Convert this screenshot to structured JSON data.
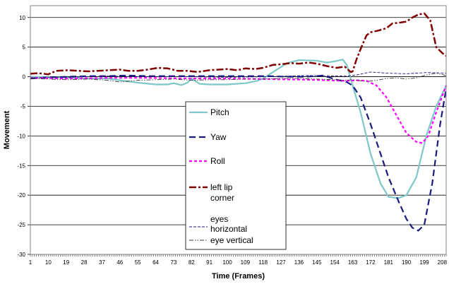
{
  "chart_data": {
    "type": "line",
    "xlabel": "Time (Frames)",
    "ylabel": "Movement",
    "xlim": [
      1,
      210
    ],
    "ylim": [
      -30,
      12
    ],
    "y_ticks": [
      -30,
      -25,
      -20,
      -15,
      -10,
      -5,
      0,
      5,
      10
    ],
    "x_ticks": [
      1,
      10,
      19,
      28,
      37,
      46,
      55,
      64,
      73,
      82,
      91,
      100,
      109,
      118,
      127,
      136,
      145,
      154,
      163,
      172,
      181,
      190,
      199,
      208
    ],
    "grid": "horizontal",
    "legend_position": "center",
    "series": [
      {
        "name": "Pitch",
        "color": "#7ec8c8",
        "style": "solid",
        "x": [
          1,
          10,
          20,
          30,
          40,
          46,
          55,
          64,
          70,
          73,
          77,
          80,
          82,
          86,
          91,
          100,
          109,
          115,
          118,
          124,
          130,
          136,
          145,
          150,
          154,
          158,
          160,
          163,
          167,
          172,
          177,
          181,
          186,
          190,
          195,
          200,
          205,
          210
        ],
        "y": [
          0.0,
          -0.1,
          -0.2,
          -0.3,
          -0.3,
          -0.6,
          -1.0,
          -1.3,
          -1.3,
          -1.1,
          -1.4,
          -1.0,
          -0.3,
          -1.2,
          -1.3,
          -1.3,
          -1.1,
          -0.7,
          -0.3,
          1.0,
          2.3,
          2.8,
          2.7,
          2.4,
          2.6,
          2.9,
          2.0,
          -1.5,
          -6.0,
          -13.0,
          -18.0,
          -20.3,
          -20.5,
          -20.0,
          -17.0,
          -10.0,
          -5.0,
          -1.5
        ]
      },
      {
        "name": "Yaw",
        "color": "#1a1a80",
        "style": "dash",
        "x": [
          1,
          10,
          20,
          30,
          40,
          50,
          60,
          70,
          80,
          90,
          100,
          110,
          120,
          130,
          140,
          148,
          155,
          160,
          163,
          167,
          172,
          177,
          181,
          186,
          190,
          193,
          196,
          199,
          203,
          207,
          210
        ],
        "y": [
          -0.3,
          -0.1,
          0.0,
          0.1,
          0.1,
          0.2,
          0.1,
          0.1,
          0.1,
          0.1,
          0.1,
          0.1,
          0.1,
          0.0,
          0.0,
          0.2,
          -0.5,
          -0.9,
          -1.5,
          -3.5,
          -8.0,
          -13.0,
          -17.0,
          -21.0,
          -24.0,
          -25.5,
          -26.0,
          -25.0,
          -18.0,
          -8.0,
          -2.0
        ]
      },
      {
        "name": "Roll",
        "color": "#ff00ff",
        "style": "dash-short",
        "x": [
          1,
          20,
          40,
          60,
          80,
          100,
          120,
          140,
          160,
          165,
          170,
          175,
          180,
          185,
          190,
          195,
          198,
          201,
          205,
          210
        ],
        "y": [
          -0.2,
          -0.3,
          -0.2,
          -0.2,
          -0.3,
          -0.3,
          -0.4,
          -0.5,
          -0.7,
          -0.6,
          -0.7,
          -1.5,
          -3.5,
          -6.5,
          -9.5,
          -11.0,
          -11.2,
          -10.0,
          -6.0,
          -1.5
        ]
      },
      {
        "name": "left lip corner",
        "color": "#800000",
        "style": "dashdot",
        "x": [
          1,
          5,
          10,
          14,
          20,
          30,
          40,
          46,
          50,
          55,
          60,
          65,
          70,
          75,
          80,
          85,
          91,
          100,
          105,
          109,
          114,
          118,
          123,
          127,
          132,
          136,
          141,
          145,
          150,
          155,
          159,
          162,
          163,
          165,
          168,
          170,
          172,
          176,
          180,
          183,
          186,
          190,
          193,
          196,
          199,
          202,
          205,
          208,
          210
        ],
        "y": [
          0.5,
          0.6,
          0.4,
          1.0,
          1.1,
          0.9,
          1.1,
          1.2,
          1.0,
          1.0,
          1.2,
          1.5,
          1.4,
          1.0,
          1.0,
          0.8,
          1.1,
          1.3,
          1.1,
          1.4,
          1.3,
          1.5,
          2.0,
          2.1,
          2.3,
          2.2,
          2.4,
          2.2,
          1.8,
          1.5,
          1.7,
          0.8,
          0.9,
          3.0,
          5.5,
          7.0,
          7.5,
          7.8,
          8.2,
          9.0,
          9.1,
          9.3,
          10.0,
          10.5,
          10.7,
          9.5,
          5.0,
          4.0,
          3.5
        ]
      },
      {
        "name": "eyes horizontal",
        "color": "#1a1a80",
        "style": "dash-fine",
        "x": [
          1,
          20,
          40,
          60,
          80,
          100,
          120,
          140,
          160,
          165,
          172,
          180,
          190,
          200,
          210
        ],
        "y": [
          -0.2,
          -0.1,
          0.1,
          0.0,
          0.0,
          -0.1,
          0.0,
          0.2,
          0.1,
          0.3,
          0.8,
          0.6,
          0.5,
          0.7,
          0.6
        ]
      },
      {
        "name": "eye vertical",
        "color": "#333333",
        "style": "dashdotdot",
        "x": [
          1,
          10,
          20,
          30,
          40,
          46,
          55,
          64,
          73,
          82,
          91,
          100,
          109,
          118,
          127,
          136,
          145,
          154,
          160,
          163,
          170,
          175,
          180,
          185,
          190,
          195,
          200,
          205,
          210
        ],
        "y": [
          -0.3,
          -0.4,
          -0.5,
          -0.4,
          -0.6,
          -0.9,
          -0.6,
          -0.5,
          -0.4,
          -0.6,
          -0.5,
          -0.5,
          -0.4,
          -0.4,
          -0.3,
          -0.3,
          -0.4,
          -0.5,
          -0.6,
          -0.5,
          -0.8,
          -0.6,
          -0.3,
          -0.2,
          -0.4,
          -0.2,
          0.3,
          0.6,
          0.2
        ]
      }
    ]
  }
}
